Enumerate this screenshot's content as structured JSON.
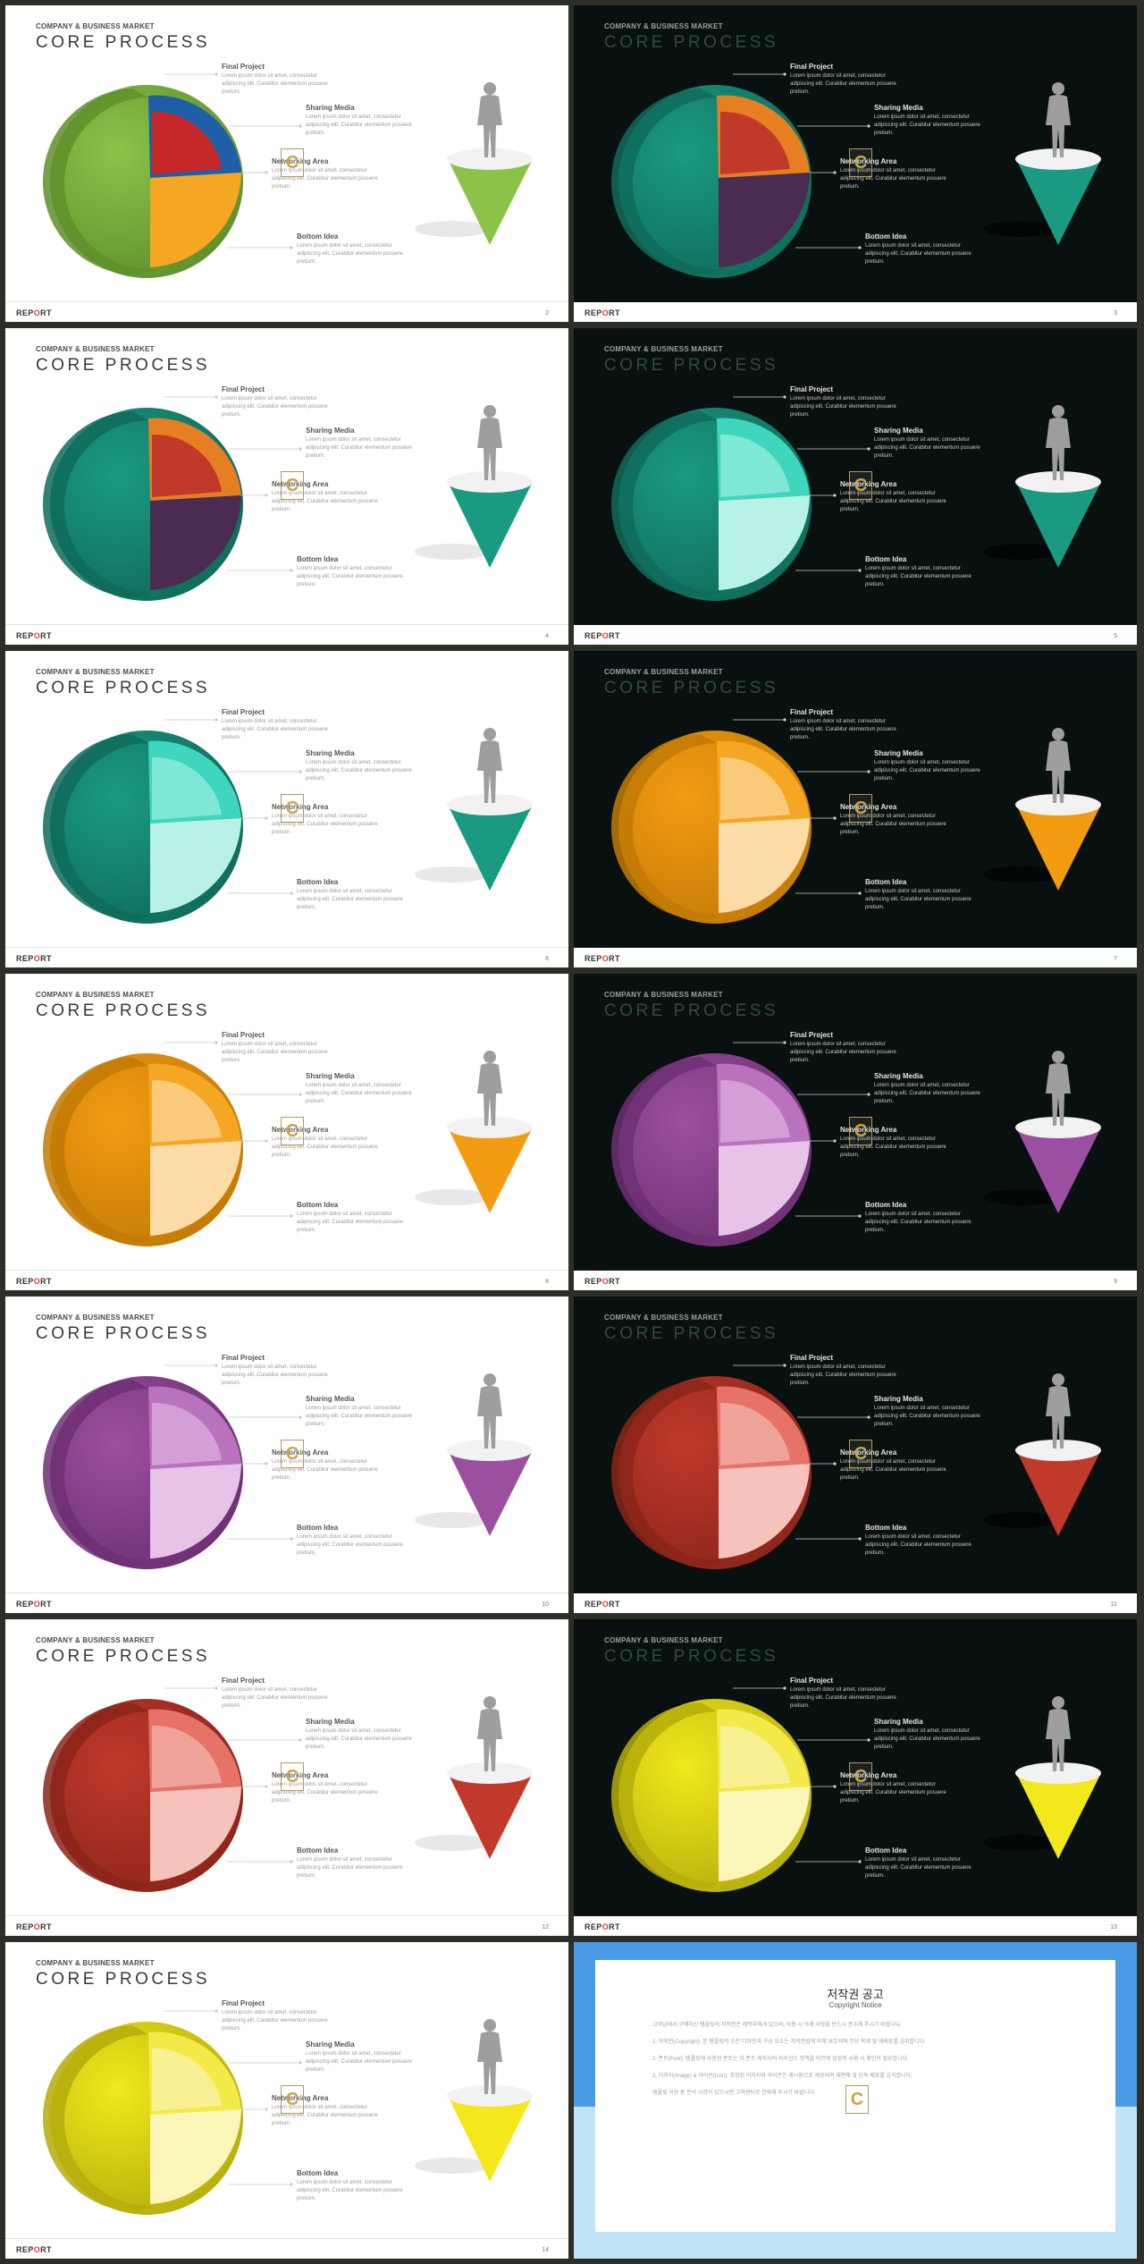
{
  "common": {
    "company": "COMPANY & BUSINESS MARKET",
    "title": "CORE PROCESS",
    "report_pre": "REP",
    "report_dot": "O",
    "report_post": "RT",
    "watermark": "C",
    "labels": {
      "final_project": "Final Project",
      "sharing_media": "Sharing Media",
      "networking_area": "Networking Area",
      "bottom_idea": "Bottom Idea"
    },
    "lorem": "Lorem ipsum dolor sit amet, consectetur adipiscing elit. Curabitur elementum posuere pretium."
  },
  "slides": [
    {
      "page": "2",
      "theme": "light",
      "colors": {
        "shell": "#8bc34a",
        "shellDark": "#5f8f2c",
        "inner1": "#c62828",
        "inner2": "#1e5fa8",
        "inner3": "#f5a623",
        "cone": "#8bc34a"
      }
    },
    {
      "page": "3",
      "theme": "dark",
      "colors": {
        "shell": "#1a9a82",
        "shellDark": "#0f6b5a",
        "inner1": "#c0392b",
        "inner2": "#e67e22",
        "inner3": "#4a2b52",
        "cone": "#1a9a82"
      }
    },
    {
      "page": "4",
      "theme": "light",
      "colors": {
        "shell": "#1a9a82",
        "shellDark": "#0f6b5a",
        "inner1": "#c0392b",
        "inner2": "#e67e22",
        "inner3": "#4a2b52",
        "cone": "#1a9a82"
      }
    },
    {
      "page": "5",
      "theme": "dark",
      "colors": {
        "shell": "#1a9a82",
        "shellDark": "#0f6b5a",
        "inner1": "#7fe7d5",
        "inner2": "#3fd6bd",
        "inner3": "#b8f2e6",
        "cone": "#1a9a82"
      }
    },
    {
      "page": "6",
      "theme": "light",
      "colors": {
        "shell": "#1a9a82",
        "shellDark": "#0f6b5a",
        "inner1": "#7fe7d5",
        "inner2": "#3fd6bd",
        "inner3": "#b8f2e6",
        "cone": "#1a9a82"
      }
    },
    {
      "page": "7",
      "theme": "dark",
      "colors": {
        "shell": "#f39c12",
        "shellDark": "#c27a06",
        "inner1": "#fbc97a",
        "inner2": "#f5a623",
        "inner3": "#fddba6",
        "cone": "#f39c12"
      }
    },
    {
      "page": "8",
      "theme": "light",
      "colors": {
        "shell": "#f39c12",
        "shellDark": "#c27a06",
        "inner1": "#fbc97a",
        "inner2": "#f5a623",
        "inner3": "#fddba6",
        "cone": "#f39c12"
      }
    },
    {
      "page": "9",
      "theme": "dark",
      "colors": {
        "shell": "#9b4fa0",
        "shellDark": "#6e2f73",
        "inner1": "#d49fd6",
        "inner2": "#b873bc",
        "inner3": "#e6c3e7",
        "cone": "#9b4fa0"
      }
    },
    {
      "page": "10",
      "theme": "light",
      "colors": {
        "shell": "#9b4fa0",
        "shellDark": "#6e2f73",
        "inner1": "#d49fd6",
        "inner2": "#b873bc",
        "inner3": "#e6c3e7",
        "cone": "#9b4fa0"
      }
    },
    {
      "page": "11",
      "theme": "dark",
      "colors": {
        "shell": "#c0392b",
        "shellDark": "#8b241a",
        "inner1": "#f0a39a",
        "inner2": "#e57368",
        "inner3": "#f5c2bc",
        "cone": "#c0392b"
      }
    },
    {
      "page": "12",
      "theme": "light",
      "colors": {
        "shell": "#c0392b",
        "shellDark": "#8b241a",
        "inner1": "#f0a39a",
        "inner2": "#e57368",
        "inner3": "#f5c2bc",
        "cone": "#c0392b"
      }
    },
    {
      "page": "13",
      "theme": "dark",
      "colors": {
        "shell": "#f2e81c",
        "shellDark": "#b5ad0c",
        "inner1": "#f8f193",
        "inner2": "#f3ea4a",
        "inner3": "#faf6b8",
        "cone": "#f2e81c"
      }
    },
    {
      "page": "14",
      "theme": "light",
      "colors": {
        "shell": "#f2e81c",
        "shellDark": "#b5ad0c",
        "inner1": "#f8f193",
        "inner2": "#f3ea4a",
        "inner3": "#faf6b8",
        "cone": "#f2e81c"
      }
    }
  ],
  "copyright": {
    "title": "저작권 공고",
    "subtitle": "Copyright Notice",
    "paragraphs": [
      "고객님께서 구매하신 템플릿의 저작권은 제작자에게 있으며, 사용 시 아래 사항을 반드시 준수해 주시기 바랍니다.",
      "1. 저작권(Copyright): 본 템플릿의 모든 디자인과 구성 요소는 저작권법에 의해 보호되며 무단 복제 및 재배포를 금지합니다.",
      "2. 폰트(Font): 템플릿에 사용된 폰트는 각 폰트 제작사의 라이선스 정책을 따르며 상업적 사용 시 확인이 필요합니다.",
      "3. 이미지(Image) & 아이콘(Icon): 포함된 이미지와 아이콘은 예시용으로 제공되며 재판매 및 단독 배포를 금지합니다.",
      "템플릿 이용 중 문의 사항이 있으시면 고객센터로 연락해 주시기 바랍니다."
    ]
  }
}
